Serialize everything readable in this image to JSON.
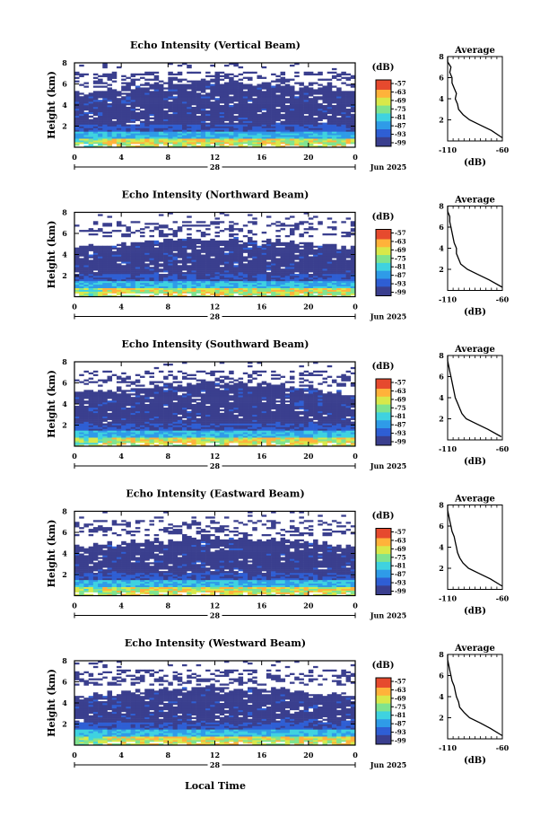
{
  "figure": {
    "xlabel": "Local Time",
    "ylabel": "Height (km)",
    "date_label": "Jun 2025",
    "day_label": "28",
    "x_ticks": [
      "0",
      "4",
      "8",
      "12",
      "16",
      "20",
      "0"
    ],
    "y_ticks": [
      "2",
      "4",
      "6",
      "8"
    ],
    "colorbar_unit": "(dB)",
    "colorbar_ticks": [
      "-57",
      "-63",
      "-69",
      "-75",
      "-81",
      "-87",
      "-93",
      "-99"
    ],
    "avg_title": "Average",
    "avg_xlabel": "(dB)",
    "avg_x_ticks": [
      "-110",
      "-60"
    ],
    "avg_y_ticks": [
      "2",
      "4",
      "6",
      "8"
    ]
  },
  "chart_data": [
    {
      "type": "heatmap",
      "title": "Echo Intensity (Vertical Beam)",
      "xlabel": "Local Time",
      "ylabel": "Height (km)",
      "xlim": [
        0,
        24
      ],
      "ylim": [
        0,
        8
      ],
      "colorbar": {
        "unit": "dB",
        "range": [
          -99,
          -57
        ]
      },
      "description_values": {
        "strong_layer_top_km": 1.5,
        "cloud_layer_top_km": [
          5.5,
          6.5
        ],
        "secondary_layer_km": [
          6.0,
          7.0
        ]
      },
      "average_profile": {
        "xlabel": "(dB)",
        "xlim": [
          -110,
          -60
        ],
        "ylim": [
          0,
          8
        ],
        "height_km": [
          0.3,
          1.0,
          1.5,
          2.0,
          2.5,
          3.0,
          3.5,
          4.0,
          4.5,
          5.0,
          5.5,
          6.0,
          6.5,
          7.0,
          7.5,
          8.0
        ],
        "intensity_db": [
          -60,
          -70,
          -80,
          -90,
          -96,
          -100,
          -101,
          -103,
          -102,
          -104,
          -106,
          -106,
          -108,
          -107,
          -110,
          -110
        ]
      }
    },
    {
      "type": "heatmap",
      "title": "Echo Intensity (Northward Beam)",
      "xlabel": "Local Time",
      "ylabel": "Height (km)",
      "xlim": [
        0,
        24
      ],
      "ylim": [
        0,
        8
      ],
      "colorbar": {
        "unit": "dB",
        "range": [
          -99,
          -57
        ]
      },
      "average_profile": {
        "xlabel": "(dB)",
        "xlim": [
          -110,
          -60
        ],
        "ylim": [
          0,
          8
        ],
        "height_km": [
          0.3,
          1.0,
          1.5,
          2.0,
          2.5,
          3.0,
          3.5,
          4.0,
          4.5,
          5.0,
          5.5,
          6.0,
          6.5,
          7.0,
          7.5,
          8.0
        ],
        "intensity_db": [
          -60,
          -72,
          -82,
          -92,
          -98,
          -100,
          -102,
          -102,
          -104,
          -105,
          -106,
          -107,
          -108,
          -108,
          -110,
          -110
        ]
      }
    },
    {
      "type": "heatmap",
      "title": "Echo Intensity (Southward Beam)",
      "xlabel": "Local Time",
      "ylabel": "Height (km)",
      "xlim": [
        0,
        24
      ],
      "ylim": [
        0,
        8
      ],
      "colorbar": {
        "unit": "dB",
        "range": [
          -99,
          -57
        ]
      },
      "average_profile": {
        "xlabel": "(dB)",
        "xlim": [
          -110,
          -60
        ],
        "ylim": [
          0,
          8
        ],
        "height_km": [
          0.3,
          1.0,
          1.5,
          2.0,
          2.5,
          3.0,
          3.5,
          4.0,
          4.5,
          5.0,
          5.5,
          6.0,
          6.5,
          7.0,
          7.5,
          8.0
        ],
        "intensity_db": [
          -61,
          -73,
          -83,
          -93,
          -97,
          -99,
          -101,
          -103,
          -104,
          -105,
          -106,
          -107,
          -108,
          -109,
          -110,
          -110
        ]
      }
    },
    {
      "type": "heatmap",
      "title": "Echo Intensity (Eastward Beam)",
      "xlabel": "Local Time",
      "ylabel": "Height (km)",
      "xlim": [
        0,
        24
      ],
      "ylim": [
        0,
        8
      ],
      "colorbar": {
        "unit": "dB",
        "range": [
          -99,
          -57
        ]
      },
      "average_profile": {
        "xlabel": "(dB)",
        "xlim": [
          -110,
          -60
        ],
        "ylim": [
          0,
          8
        ],
        "height_km": [
          0.3,
          1.0,
          1.5,
          2.0,
          2.5,
          3.0,
          3.5,
          4.0,
          4.5,
          5.0,
          5.5,
          6.0,
          6.5,
          7.0,
          7.5,
          8.0
        ],
        "intensity_db": [
          -60,
          -71,
          -81,
          -91,
          -96,
          -99,
          -101,
          -102,
          -103,
          -104,
          -106,
          -107,
          -108,
          -109,
          -110,
          -110
        ]
      }
    },
    {
      "type": "heatmap",
      "title": "Echo Intensity (Westward Beam)",
      "xlabel": "Local Time",
      "ylabel": "Height (km)",
      "xlim": [
        0,
        24
      ],
      "ylim": [
        0,
        8
      ],
      "colorbar": {
        "unit": "dB",
        "range": [
          -99,
          -57
        ]
      },
      "average_profile": {
        "xlabel": "(dB)",
        "xlim": [
          -110,
          -60
        ],
        "ylim": [
          0,
          8
        ],
        "height_km": [
          0.3,
          1.0,
          1.5,
          2.0,
          2.5,
          3.0,
          3.5,
          4.0,
          4.5,
          5.0,
          5.5,
          6.0,
          6.5,
          7.0,
          7.5,
          8.0
        ],
        "intensity_db": [
          -60,
          -71,
          -80,
          -90,
          -95,
          -99,
          -100,
          -102,
          -103,
          -104,
          -106,
          -107,
          -108,
          -109,
          -110,
          -110
        ]
      }
    }
  ],
  "colors": {
    "empty": "#ffffff",
    "colormap": [
      "#3a3f8e",
      "#2f5fd4",
      "#2f9be8",
      "#3fd2e0",
      "#7fe38f",
      "#d8e84a",
      "#ffb23a",
      "#e64a2e"
    ]
  }
}
